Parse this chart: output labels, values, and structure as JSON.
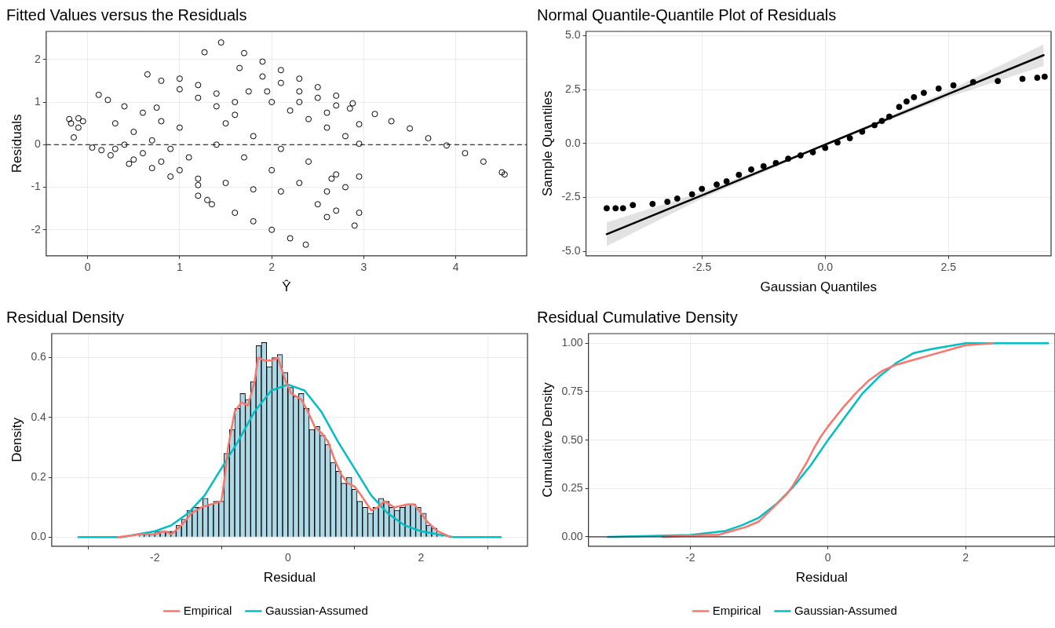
{
  "chart_data": [
    {
      "type": "scatter",
      "title": "Fitted Values versus the Residuals",
      "xlabel": "Ŷ",
      "ylabel": "Residuals",
      "xlim": [
        -0.45,
        4.77
      ],
      "ylim": [
        -2.61,
        2.66
      ],
      "xticks": [
        0,
        1,
        2,
        3,
        4
      ],
      "yticks": [
        -2,
        -1,
        0,
        1,
        2
      ],
      "grid": true,
      "marker": "circle",
      "series": [
        {
          "color": "#000000",
          "x": [
            -0.2,
            -0.18,
            -0.1,
            -0.1,
            -0.15,
            -0.05,
            0.05,
            0.12,
            0.15,
            0.25,
            0.22,
            0.4,
            0.6,
            0.8,
            1.0,
            0.3,
            0.5,
            0.7,
            0.9,
            1.1,
            0.4,
            0.6,
            0.8,
            1.0,
            1.2,
            0.3,
            0.5,
            0.7,
            0.9,
            1.2,
            0.45,
            0.65,
            0.75,
            1.27,
            1.2,
            1.3,
            0.8,
            1.0,
            1.2,
            1.4,
            1.6,
            1.0,
            1.2,
            1.4,
            1.6,
            1.75,
            2.0,
            2.2,
            2.4,
            2.6,
            2.8,
            2.95,
            1.5,
            1.8,
            2.1,
            2.4,
            2.7,
            2.95,
            1.4,
            1.7,
            2.0,
            2.3,
            2.6,
            1.5,
            1.8,
            2.1,
            2.5,
            2.7,
            2.95,
            2.9,
            2.6,
            1.45,
            1.7,
            1.9,
            2.1,
            2.3,
            2.5,
            2.7,
            2.88,
            1.65,
            1.9,
            2.1,
            2.3,
            2.5,
            2.7,
            2.85,
            1.95,
            2.3,
            2.6,
            2.95,
            1.35,
            1.6,
            1.8,
            2.0,
            2.2,
            2.37,
            3.12,
            3.3,
            3.5,
            3.7,
            3.9,
            4.1,
            4.3,
            4.5,
            4.53,
            2.8,
            2.65
          ],
          "values": [
            0.6,
            0.5,
            0.62,
            0.4,
            0.17,
            0.55,
            -0.07,
            1.17,
            -0.13,
            -0.25,
            1.05,
            0.9,
            0.75,
            0.55,
            0.4,
            0.5,
            0.3,
            0.1,
            -0.1,
            -0.3,
            0.0,
            -0.2,
            -0.4,
            -0.6,
            -0.8,
            -0.1,
            -0.35,
            -0.55,
            -0.75,
            -0.95,
            -0.45,
            1.65,
            0.87,
            2.17,
            -1.2,
            -1.3,
            1.5,
            1.3,
            1.1,
            0.9,
            0.7,
            1.55,
            1.4,
            1.2,
            1.0,
            1.25,
            1.0,
            0.8,
            0.6,
            0.4,
            0.2,
            0.02,
            0.5,
            0.2,
            -0.1,
            -0.4,
            -0.7,
            -0.75,
            0.0,
            -0.3,
            -0.6,
            -0.9,
            -1.1,
            -0.9,
            -1.05,
            -1.1,
            -1.4,
            -1.55,
            -1.6,
            -1.9,
            -1.7,
            2.4,
            2.15,
            1.95,
            1.75,
            1.55,
            1.35,
            1.15,
            0.97,
            1.8,
            1.6,
            1.45,
            1.25,
            1.1,
            0.92,
            0.85,
            1.25,
            1.0,
            0.75,
            0.48,
            -1.4,
            -1.6,
            -1.8,
            -2.0,
            -2.2,
            -2.35,
            0.72,
            0.55,
            0.38,
            0.15,
            -0.02,
            -0.2,
            -0.4,
            -0.65,
            -0.7,
            -1.0,
            -0.8
          ]
        }
      ],
      "ref_lines": [
        {
          "axis": "y",
          "value": 0,
          "line_style": "dashed",
          "color": "#000000"
        }
      ]
    },
    {
      "type": "scatter",
      "title": "Normal Quantile-Quantile Plot of Residuals",
      "xlabel": "Gaussian Quantiles",
      "ylabel": "Sample Quantiles",
      "xlim": [
        -4.85,
        4.58
      ],
      "ylim": [
        -5.2,
        5.2
      ],
      "xticks": [
        -2.5,
        {
          "value": 0,
          "label": "0.0"
        },
        2.5
      ],
      "yticks": [
        {
          "value": -5,
          "label": "-5.0"
        },
        -2.5,
        {
          "value": 0,
          "label": "0.0"
        },
        2.5,
        {
          "value": 5,
          "label": "5.0"
        }
      ],
      "grid": true,
      "marker": "circle",
      "series": [
        {
          "color": "#000000",
          "x": [
            -4.43,
            -4.25,
            -4.1,
            -3.9,
            -3.5,
            -3.2,
            -3.0,
            -2.7,
            -2.5,
            -2.2,
            -2.0,
            -1.75,
            -1.5,
            -1.25,
            -1.0,
            -0.75,
            -0.5,
            -0.25,
            0,
            0.25,
            0.5,
            0.75,
            1.0,
            1.15,
            1.3,
            1.5,
            1.65,
            1.8,
            2.0,
            2.3,
            2.6,
            3.0,
            3.5,
            4.0,
            4.3,
            4.45
          ],
          "values": [
            -3.0,
            -3.0,
            -3.0,
            -2.85,
            -2.8,
            -2.7,
            -2.55,
            -2.35,
            -2.1,
            -1.9,
            -1.75,
            -1.45,
            -1.2,
            -1.05,
            -0.9,
            -0.7,
            -0.55,
            -0.4,
            -0.2,
            0.05,
            0.25,
            0.55,
            0.85,
            1.05,
            1.25,
            1.7,
            1.95,
            2.15,
            2.35,
            2.55,
            2.7,
            2.85,
            2.9,
            3.0,
            3.05,
            3.1
          ]
        },
        {
          "type": "line",
          "marker": "none",
          "color": "#000000",
          "x": [
            -4.43,
            -2.5,
            0,
            2.5,
            4.43
          ],
          "values": [
            -4.2,
            -2.4,
            -0.05,
            2.3,
            4.1
          ],
          "lower": [
            -4.75,
            -2.55,
            -0.1,
            2.15,
            3.6
          ],
          "upper": [
            -3.65,
            -2.25,
            0.0,
            2.45,
            4.6
          ]
        }
      ]
    },
    {
      "type": "histogram",
      "title": "Residual Density",
      "xlabel": "Residual",
      "ylabel": "Density",
      "xlim": [
        -3.55,
        3.6
      ],
      "ylim": [
        -0.03,
        0.68
      ],
      "xticks": [
        -2,
        0,
        2
      ],
      "yticks": [
        {
          "value": 0,
          "label": "0.0"
        },
        0.2,
        0.4,
        0.6
      ],
      "grid": true,
      "legend": "bottom",
      "color": "#add8e6",
      "bins": [
        -3.2,
        -3.12,
        -3.04,
        -2.96,
        -2.88,
        -2.8,
        -2.72,
        -2.64,
        -2.56,
        -2.48,
        -2.4,
        -2.32,
        -2.24,
        -2.16,
        -2.08,
        -2,
        -1.92,
        -1.84,
        -1.76,
        -1.68,
        -1.6,
        -1.52,
        -1.44,
        -1.36,
        -1.28,
        -1.2,
        -1.12,
        -1.04,
        -0.96,
        -0.88,
        -0.8,
        -0.72,
        -0.64,
        -0.56,
        -0.48,
        -0.4,
        -0.32,
        -0.24,
        -0.16,
        -0.08,
        0,
        0.08,
        0.16,
        0.24,
        0.32,
        0.4,
        0.48,
        0.56,
        0.64,
        0.72,
        0.8,
        0.88,
        0.96,
        1.04,
        1.12,
        1.2,
        1.28,
        1.36,
        1.44,
        1.52,
        1.6,
        1.68,
        1.76,
        1.84,
        1.92,
        2,
        2.08,
        2.16,
        2.24,
        2.32,
        2.4,
        2.48,
        2.56,
        2.64,
        2.72,
        2.8,
        2.88,
        2.96,
        3.04,
        3.12,
        3.2
      ],
      "values": [
        0,
        0,
        0,
        0,
        0,
        0,
        0,
        0,
        0,
        0,
        0,
        0,
        0.01,
        0.01,
        0.01,
        0.02,
        0.02,
        0.02,
        0.02,
        0.04,
        0.06,
        0.09,
        0.1,
        0.1,
        0.13,
        0.11,
        0.12,
        0.12,
        0.28,
        0.36,
        0.43,
        0.48,
        0.46,
        0.52,
        0.64,
        0.65,
        0.57,
        0.6,
        0.61,
        0.55,
        0.5,
        0.47,
        0.48,
        0.43,
        0.36,
        0.37,
        0.34,
        0.31,
        0.25,
        0.22,
        0.18,
        0.2,
        0.16,
        0.12,
        0.1,
        0.08,
        0.1,
        0.13,
        0.12,
        0.1,
        0.09,
        0.1,
        0.11,
        0.11,
        0.1,
        0.08,
        0.04,
        0.03,
        0.01,
        null,
        0,
        0,
        0,
        0,
        0,
        0,
        0,
        0,
        0,
        0
      ],
      "series": [
        {
          "type": "line",
          "name": "Empirical",
          "color": "#f8766d",
          "x": [
            -2.55,
            -2.2,
            -2.0,
            -1.85,
            -1.75,
            -1.6,
            -1.45,
            -1.3,
            -1.15,
            -1.0,
            -0.95,
            -0.9,
            -0.8,
            -0.7,
            -0.6,
            -0.5,
            -0.45,
            -0.35,
            -0.25,
            -0.15,
            -0.05,
            0.05,
            0.2,
            0.3,
            0.4,
            0.5,
            0.6,
            0.7,
            0.8,
            0.9,
            1.0,
            1.1,
            1.25,
            1.35,
            1.45,
            1.6,
            1.8,
            1.9,
            2.0,
            2.1,
            2.25,
            2.45
          ],
          "values": [
            0,
            0.01,
            0.01,
            0.02,
            0.01,
            0.04,
            0.08,
            0.1,
            0.11,
            0.12,
            0.2,
            0.3,
            0.42,
            0.45,
            0.44,
            0.52,
            0.6,
            0.59,
            0.59,
            0.6,
            0.53,
            0.48,
            0.46,
            0.42,
            0.37,
            0.35,
            0.32,
            0.26,
            0.21,
            0.18,
            0.17,
            0.14,
            0.09,
            0.1,
            0.12,
            0.1,
            0.11,
            0.11,
            0.08,
            0.05,
            0.02,
            0
          ]
        },
        {
          "type": "line",
          "name": "Gaussian-Assumed",
          "color": "#00bfc4",
          "x": [
            -3.15,
            -2.75,
            -2.5,
            -2.25,
            -2,
            -1.75,
            -1.5,
            -1.25,
            -1,
            -0.75,
            -0.5,
            -0.25,
            0,
            0.25,
            0.5,
            0.75,
            1,
            1.25,
            1.5,
            1.75,
            2,
            2.25,
            2.5,
            2.75,
            3.2
          ],
          "values": [
            0,
            0,
            0,
            0.01,
            0.02,
            0.04,
            0.08,
            0.14,
            0.23,
            0.32,
            0.42,
            0.49,
            0.51,
            0.49,
            0.42,
            0.32,
            0.23,
            0.14,
            0.08,
            0.04,
            0.02,
            0.01,
            0,
            0,
            0
          ]
        }
      ]
    },
    {
      "type": "line",
      "title": "Residual Cumulative Density",
      "xlabel": "Residual",
      "ylabel": "Cumulative Density",
      "xlim": [
        -3.48,
        3.3
      ],
      "ylim": [
        -0.048,
        1.05
      ],
      "xticks": [
        -2,
        0,
        2
      ],
      "yticks": [
        {
          "value": 0,
          "label": "0.00"
        },
        0.25,
        {
          "value": 0.5,
          "label": "0.50"
        },
        0.75,
        {
          "value": 1,
          "label": "1.00"
        }
      ],
      "grid": true,
      "legend": "bottom",
      "line_style": "solid",
      "series": [
        {
          "name": "Empirical",
          "color": "#f8766d",
          "x": [
            -2.4,
            -1.8,
            -1.6,
            -1.4,
            -1.2,
            -1.0,
            -0.8,
            -0.6,
            -0.5,
            -0.4,
            -0.3,
            -0.2,
            -0.1,
            0,
            0.2,
            0.4,
            0.6,
            0.8,
            1.0,
            1.2,
            1.5,
            1.8,
            2.0,
            2.4
          ],
          "values": [
            0,
            0.01,
            0.01,
            0.03,
            0.05,
            0.08,
            0.15,
            0.22,
            0.27,
            0.33,
            0.39,
            0.46,
            0.52,
            0.57,
            0.66,
            0.74,
            0.81,
            0.86,
            0.89,
            0.91,
            0.94,
            0.97,
            0.99,
            1.0
          ]
        },
        {
          "name": "Gaussian-Assumed",
          "color": "#00bfc4",
          "x": [
            -3.2,
            -2.0,
            -1.5,
            -1.25,
            -1.0,
            -0.75,
            -0.5,
            -0.25,
            0,
            0.25,
            0.5,
            0.75,
            1.0,
            1.25,
            1.5,
            2.0,
            3.2
          ],
          "values": [
            0,
            0.01,
            0.03,
            0.06,
            0.1,
            0.17,
            0.26,
            0.37,
            0.5,
            0.62,
            0.74,
            0.83,
            0.9,
            0.95,
            0.97,
            1.0,
            1.0
          ]
        }
      ],
      "ref_lines": [
        {
          "axis": "y",
          "value": 0,
          "color": "#333333",
          "line_style": "solid"
        }
      ]
    }
  ]
}
